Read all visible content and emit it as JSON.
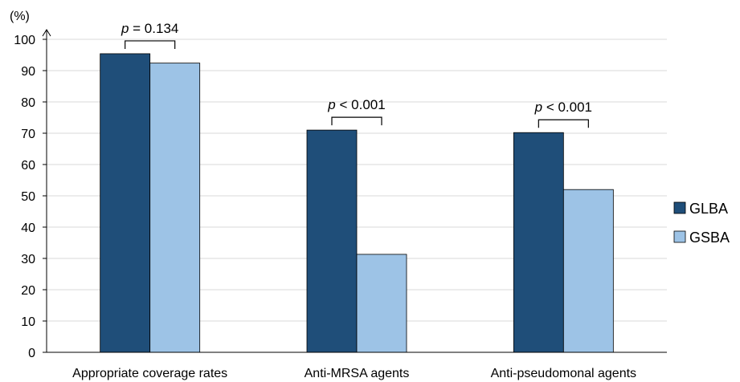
{
  "chart_data": {
    "type": "bar",
    "unit_label": "(%)",
    "categories": [
      "Appropriate coverage rates",
      "Anti-MRSA agents",
      "Anti-pseudomonal agents"
    ],
    "series": [
      {
        "name": "GLBA",
        "color": "#1f4e79",
        "values": [
          95.4,
          71.0,
          70.2
        ]
      },
      {
        "name": "GSBA",
        "color": "#9dc3e6",
        "values": [
          92.4,
          31.3,
          52.0
        ]
      }
    ],
    "yticks": [
      0,
      10,
      20,
      30,
      40,
      50,
      60,
      70,
      80,
      90,
      100
    ],
    "ylim": [
      0,
      100
    ],
    "grid": true,
    "legend_position": "right",
    "annotations": [
      {
        "p_symbol": "p",
        "text": " = 0.134"
      },
      {
        "p_symbol": "p",
        "text": " < 0.001"
      },
      {
        "p_symbol": "p",
        "text": " < 0.001"
      }
    ]
  }
}
